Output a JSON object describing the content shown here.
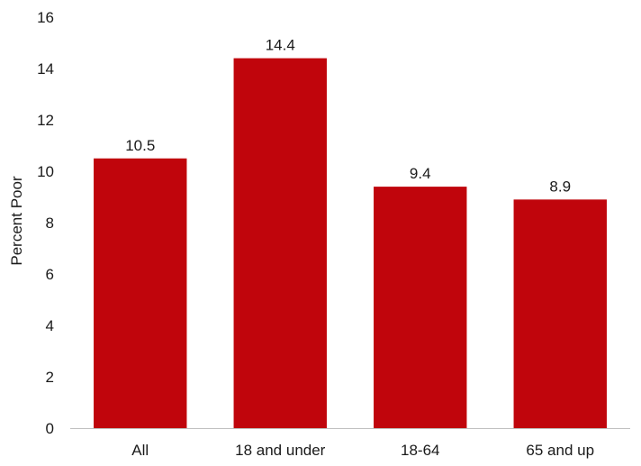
{
  "chart_data": {
    "type": "bar",
    "title": "",
    "xlabel": "",
    "ylabel": "Percent Poor",
    "categories": [
      "All",
      "18 and under",
      "18-64",
      "65 and up"
    ],
    "values": [
      10.5,
      14.4,
      9.4,
      8.9
    ],
    "data_labels": [
      "10.5",
      "14.4",
      "9.4",
      "8.9"
    ],
    "ylim": [
      0,
      16
    ],
    "yticks": [
      0,
      2,
      4,
      6,
      8,
      10,
      12,
      14,
      16
    ],
    "grid": false,
    "legend": "none",
    "bar_color": "#C0050C",
    "axis_color": "#BFBFBF"
  }
}
